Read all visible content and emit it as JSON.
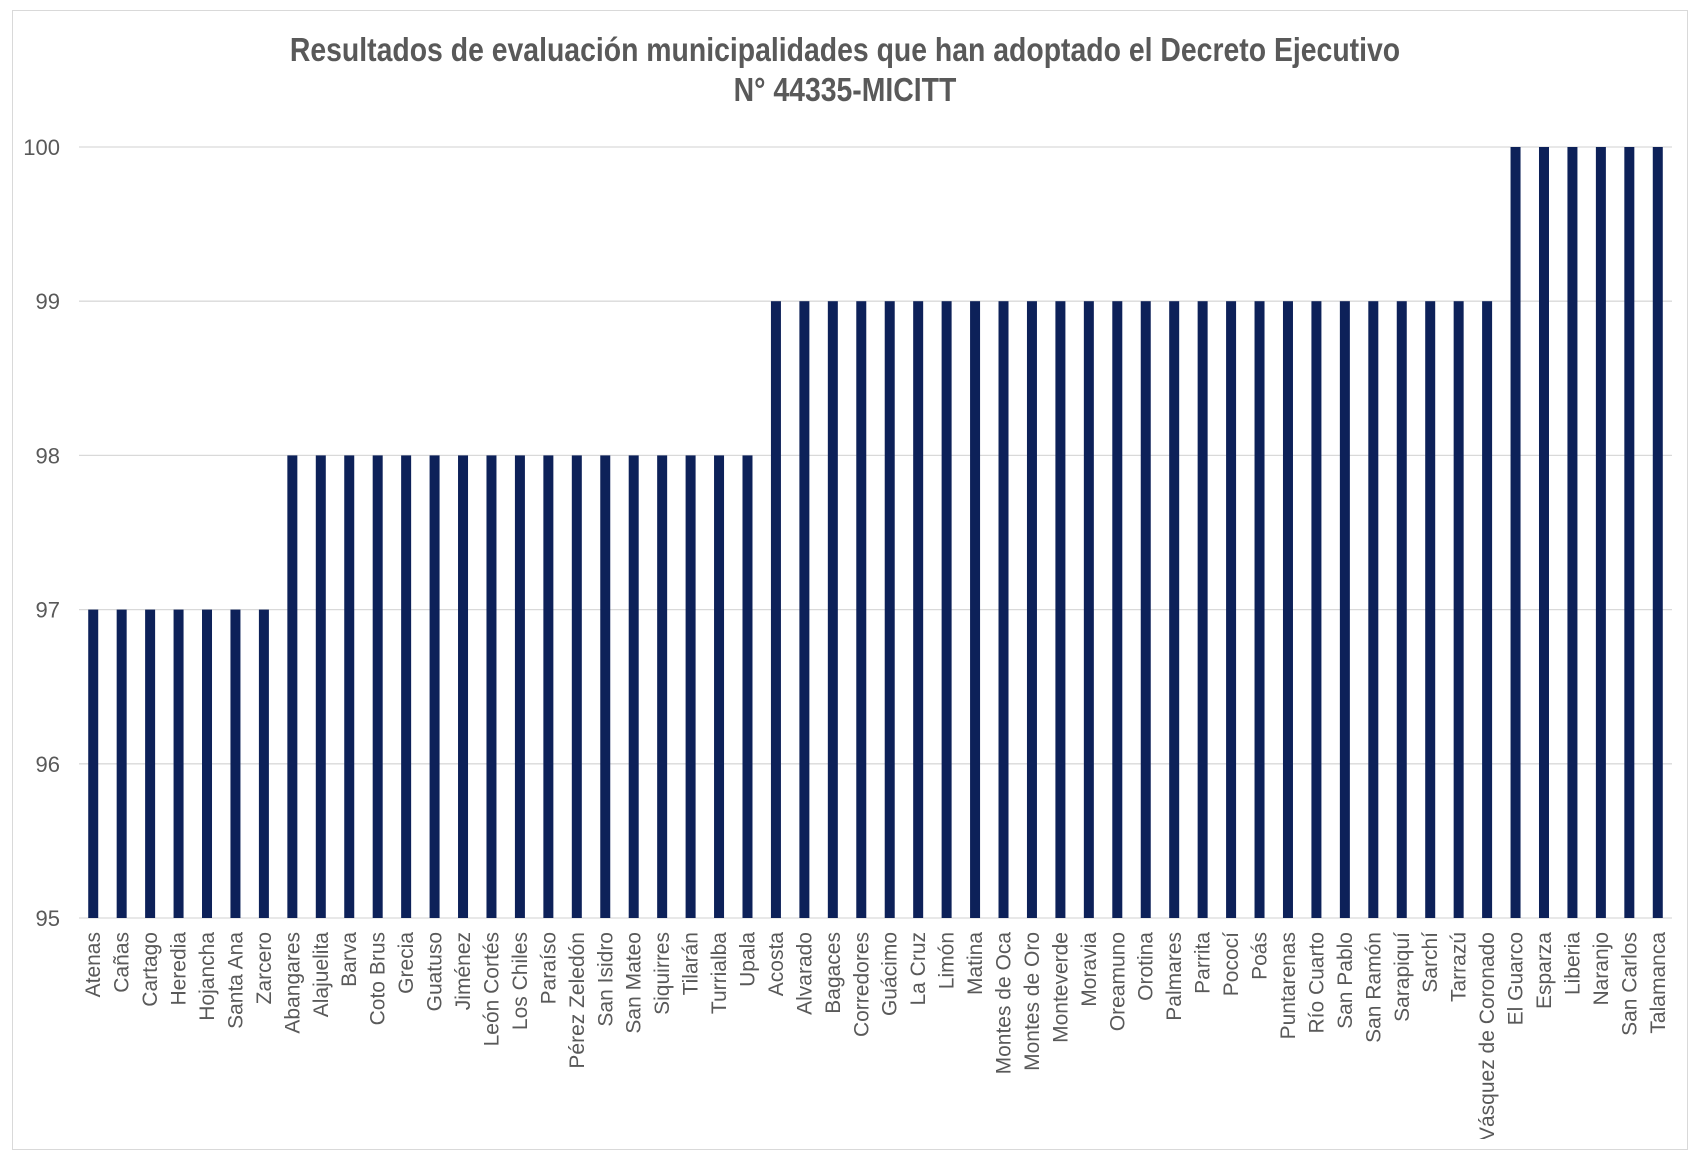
{
  "chart_data": {
    "type": "bar",
    "title": "Resultados de evaluación municipalidades que han adoptado el Decreto Ejecutivo N° 44335-MICITT",
    "xlabel": "",
    "ylabel": "",
    "ylim": [
      95,
      100
    ],
    "yticks": [
      95,
      96,
      97,
      98,
      99,
      100
    ],
    "grid": true,
    "legend": "none",
    "bar_color": "#0d2159",
    "categories": [
      "Atenas",
      "Cañas",
      "Cartago",
      "Heredia",
      "Hojancha",
      "Santa Ana",
      "Zarcero",
      "Abangares",
      "Alajuelita",
      "Barva",
      "Coto Brus",
      "Grecia",
      "Guatuso",
      "Jiménez",
      "León Cortés",
      "Los Chiles",
      "Paraíso",
      "Pérez Zeledón",
      "San Isidro",
      "San Mateo",
      "Siquirres",
      "Tilarán",
      "Turrialba",
      "Upala",
      "Acosta",
      "Alvarado",
      "Bagaces",
      "Corredores",
      "Guácimo",
      "La Cruz",
      "Limón",
      "Matina",
      "Montes de Oca",
      "Montes de Oro",
      "Monteverde",
      "Moravia",
      "Oreamuno",
      "Orotina",
      "Palmares",
      "Parrita",
      "Pococí",
      "Poás",
      "Puntarenas",
      "Río Cuarto",
      "San Pablo",
      "San Ramón",
      "Sarapiquí",
      "Sarchí",
      "Tarrazú",
      "Vásquez de Coronado",
      "El Guarco",
      "Esparza",
      "Liberia",
      "Naranjo",
      "San Carlos",
      "Talamanca"
    ],
    "values": [
      97,
      97,
      97,
      97,
      97,
      97,
      97,
      98,
      98,
      98,
      98,
      98,
      98,
      98,
      98,
      98,
      98,
      98,
      98,
      98,
      98,
      98,
      98,
      98,
      99,
      99,
      99,
      99,
      99,
      99,
      99,
      99,
      99,
      99,
      99,
      99,
      99,
      99,
      99,
      99,
      99,
      99,
      99,
      99,
      99,
      99,
      99,
      99,
      99,
      99,
      100,
      100,
      100,
      100,
      100,
      100
    ]
  }
}
